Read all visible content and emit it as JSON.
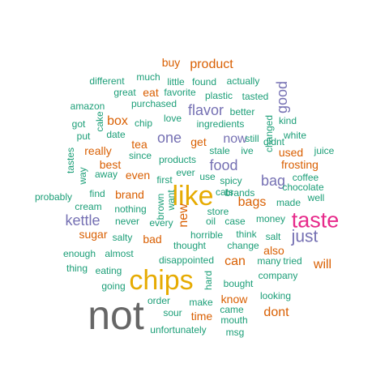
{
  "palette": {
    "teal": "#1b9e77",
    "orange": "#d95f02",
    "purple": "#7570b3",
    "pink": "#e7298a",
    "olive": "#66a61e",
    "gold": "#e6ab02",
    "brown": "#a6761d",
    "gray": "#666666"
  },
  "words": [
    {
      "text": "not",
      "color": "gray",
      "weight": 10,
      "vertical": false
    },
    {
      "text": "chips",
      "color": "gold",
      "weight": 8,
      "vertical": false
    },
    {
      "text": "like",
      "color": "gold",
      "weight": 8,
      "vertical": false
    },
    {
      "text": "taste",
      "color": "pink",
      "weight": 7,
      "vertical": false
    },
    {
      "text": "just",
      "color": "purple",
      "weight": 6,
      "vertical": false
    },
    {
      "text": "kettle",
      "color": "purple",
      "weight": 5,
      "vertical": false
    },
    {
      "text": "food",
      "color": "purple",
      "weight": 5,
      "vertical": false
    },
    {
      "text": "bag",
      "color": "purple",
      "weight": 5,
      "vertical": false
    },
    {
      "text": "one",
      "color": "purple",
      "weight": 5,
      "vertical": false
    },
    {
      "text": "flavor",
      "color": "purple",
      "weight": 5,
      "vertical": false
    },
    {
      "text": "good",
      "color": "purple",
      "weight": 5,
      "vertical": true
    },
    {
      "text": "product",
      "color": "orange",
      "weight": 4,
      "vertical": false
    },
    {
      "text": "box",
      "color": "orange",
      "weight": 4,
      "vertical": false
    },
    {
      "text": "now",
      "color": "purple",
      "weight": 4,
      "vertical": false
    },
    {
      "text": "new",
      "color": "orange",
      "weight": 4,
      "vertical": true
    },
    {
      "text": "will",
      "color": "orange",
      "weight": 4,
      "vertical": false
    },
    {
      "text": "dont",
      "color": "orange",
      "weight": 4,
      "vertical": false
    },
    {
      "text": "can",
      "color": "orange",
      "weight": 4,
      "vertical": false
    },
    {
      "text": "bags",
      "color": "orange",
      "weight": 4,
      "vertical": false
    },
    {
      "text": "buy",
      "color": "orange",
      "weight": 3,
      "vertical": false
    },
    {
      "text": "best",
      "color": "orange",
      "weight": 3,
      "vertical": false
    },
    {
      "text": "brand",
      "color": "orange",
      "weight": 3,
      "vertical": false
    },
    {
      "text": "bad",
      "color": "orange",
      "weight": 3,
      "vertical": false
    },
    {
      "text": "even",
      "color": "orange",
      "weight": 3,
      "vertical": false
    },
    {
      "text": "used",
      "color": "orange",
      "weight": 3,
      "vertical": false
    },
    {
      "text": "frosting",
      "color": "orange",
      "weight": 3,
      "vertical": false
    },
    {
      "text": "know",
      "color": "orange",
      "weight": 3,
      "vertical": false
    },
    {
      "text": "time",
      "color": "orange",
      "weight": 3,
      "vertical": false
    },
    {
      "text": "eat",
      "color": "orange",
      "weight": 3,
      "vertical": false
    },
    {
      "text": "tea",
      "color": "orange",
      "weight": 3,
      "vertical": false
    },
    {
      "text": "sugar",
      "color": "orange",
      "weight": 3,
      "vertical": false
    },
    {
      "text": "get",
      "color": "orange",
      "weight": 3,
      "vertical": false
    },
    {
      "text": "really",
      "color": "orange",
      "weight": 3,
      "vertical": false
    },
    {
      "text": "also",
      "color": "orange",
      "weight": 3,
      "vertical": false
    },
    {
      "text": "much",
      "color": "teal",
      "weight": 2,
      "vertical": false
    },
    {
      "text": "little",
      "color": "teal",
      "weight": 2,
      "vertical": false
    },
    {
      "text": "found",
      "color": "teal",
      "weight": 2,
      "vertical": false
    },
    {
      "text": "actually",
      "color": "teal",
      "weight": 2,
      "vertical": false
    },
    {
      "text": "different",
      "color": "teal",
      "weight": 2,
      "vertical": false
    },
    {
      "text": "great",
      "color": "teal",
      "weight": 2,
      "vertical": false
    },
    {
      "text": "favorite",
      "color": "teal",
      "weight": 2,
      "vertical": false
    },
    {
      "text": "plastic",
      "color": "teal",
      "weight": 2,
      "vertical": false
    },
    {
      "text": "tasted",
      "color": "teal",
      "weight": 2,
      "vertical": false
    },
    {
      "text": "amazon",
      "color": "teal",
      "weight": 2,
      "vertical": false
    },
    {
      "text": "purchased",
      "color": "teal",
      "weight": 2,
      "vertical": false
    },
    {
      "text": "better",
      "color": "teal",
      "weight": 2,
      "vertical": false
    },
    {
      "text": "kind",
      "color": "teal",
      "weight": 2,
      "vertical": false
    },
    {
      "text": "cake",
      "color": "teal",
      "weight": 2,
      "vertical": true
    },
    {
      "text": "got",
      "color": "teal",
      "weight": 2,
      "vertical": false
    },
    {
      "text": "chip",
      "color": "teal",
      "weight": 2,
      "vertical": false
    },
    {
      "text": "love",
      "color": "teal",
      "weight": 2,
      "vertical": false
    },
    {
      "text": "ingredients",
      "color": "teal",
      "weight": 2,
      "vertical": false
    },
    {
      "text": "changed",
      "color": "teal",
      "weight": 2,
      "vertical": true
    },
    {
      "text": "white",
      "color": "teal",
      "weight": 2,
      "vertical": false
    },
    {
      "text": "put",
      "color": "teal",
      "weight": 2,
      "vertical": false
    },
    {
      "text": "date",
      "color": "teal",
      "weight": 2,
      "vertical": false
    },
    {
      "text": "still",
      "color": "teal",
      "weight": 2,
      "vertical": false
    },
    {
      "text": "didnt",
      "color": "teal",
      "weight": 2,
      "vertical": false
    },
    {
      "text": "tastes",
      "color": "teal",
      "weight": 2,
      "vertical": true
    },
    {
      "text": "way",
      "color": "teal",
      "weight": 2,
      "vertical": true
    },
    {
      "text": "since",
      "color": "teal",
      "weight": 2,
      "vertical": false
    },
    {
      "text": "products",
      "color": "teal",
      "weight": 2,
      "vertical": false
    },
    {
      "text": "stale",
      "color": "teal",
      "weight": 2,
      "vertical": false
    },
    {
      "text": "ive",
      "color": "teal",
      "weight": 2,
      "vertical": false
    },
    {
      "text": "juice",
      "color": "teal",
      "weight": 2,
      "vertical": false
    },
    {
      "text": "away",
      "color": "teal",
      "weight": 2,
      "vertical": false
    },
    {
      "text": "ever",
      "color": "teal",
      "weight": 2,
      "vertical": false
    },
    {
      "text": "use",
      "color": "teal",
      "weight": 2,
      "vertical": false
    },
    {
      "text": "coffee",
      "color": "teal",
      "weight": 2,
      "vertical": false
    },
    {
      "text": "first",
      "color": "teal",
      "weight": 2,
      "vertical": false
    },
    {
      "text": "spicy",
      "color": "teal",
      "weight": 2,
      "vertical": false
    },
    {
      "text": "chocolate",
      "color": "teal",
      "weight": 2,
      "vertical": false
    },
    {
      "text": "find",
      "color": "teal",
      "weight": 2,
      "vertical": false
    },
    {
      "text": "want",
      "color": "teal",
      "weight": 2,
      "vertical": true
    },
    {
      "text": "cats",
      "color": "teal",
      "weight": 2,
      "vertical": false
    },
    {
      "text": "brands",
      "color": "teal",
      "weight": 2,
      "vertical": false
    },
    {
      "text": "well",
      "color": "teal",
      "weight": 2,
      "vertical": false
    },
    {
      "text": "probably",
      "color": "teal",
      "weight": 2,
      "vertical": false
    },
    {
      "text": "cream",
      "color": "teal",
      "weight": 2,
      "vertical": false
    },
    {
      "text": "brown",
      "color": "teal",
      "weight": 2,
      "vertical": true
    },
    {
      "text": "made",
      "color": "teal",
      "weight": 2,
      "vertical": false
    },
    {
      "text": "nothing",
      "color": "teal",
      "weight": 2,
      "vertical": false
    },
    {
      "text": "store",
      "color": "teal",
      "weight": 2,
      "vertical": false
    },
    {
      "text": "never",
      "color": "teal",
      "weight": 2,
      "vertical": false
    },
    {
      "text": "oil",
      "color": "teal",
      "weight": 2,
      "vertical": false
    },
    {
      "text": "case",
      "color": "teal",
      "weight": 2,
      "vertical": false
    },
    {
      "text": "money",
      "color": "teal",
      "weight": 2,
      "vertical": false
    },
    {
      "text": "every",
      "color": "teal",
      "weight": 2,
      "vertical": false
    },
    {
      "text": "think",
      "color": "teal",
      "weight": 2,
      "vertical": false
    },
    {
      "text": "salty",
      "color": "teal",
      "weight": 2,
      "vertical": false
    },
    {
      "text": "salt",
      "color": "teal",
      "weight": 2,
      "vertical": false
    },
    {
      "text": "horrible",
      "color": "teal",
      "weight": 2,
      "vertical": false
    },
    {
      "text": "thought",
      "color": "teal",
      "weight": 2,
      "vertical": false
    },
    {
      "text": "change",
      "color": "teal",
      "weight": 2,
      "vertical": false
    },
    {
      "text": "enough",
      "color": "teal",
      "weight": 2,
      "vertical": false
    },
    {
      "text": "almost",
      "color": "teal",
      "weight": 2,
      "vertical": false
    },
    {
      "text": "disappointed",
      "color": "teal",
      "weight": 2,
      "vertical": false
    },
    {
      "text": "many",
      "color": "teal",
      "weight": 2,
      "vertical": false
    },
    {
      "text": "tried",
      "color": "teal",
      "weight": 2,
      "vertical": false
    },
    {
      "text": "thing",
      "color": "teal",
      "weight": 2,
      "vertical": false
    },
    {
      "text": "eating",
      "color": "teal",
      "weight": 2,
      "vertical": false
    },
    {
      "text": "hard",
      "color": "teal",
      "weight": 2,
      "vertical": true
    },
    {
      "text": "company",
      "color": "teal",
      "weight": 2,
      "vertical": false
    },
    {
      "text": "bought",
      "color": "teal",
      "weight": 2,
      "vertical": false
    },
    {
      "text": "going",
      "color": "teal",
      "weight": 2,
      "vertical": false
    },
    {
      "text": "looking",
      "color": "teal",
      "weight": 2,
      "vertical": false
    },
    {
      "text": "order",
      "color": "teal",
      "weight": 2,
      "vertical": false
    },
    {
      "text": "make",
      "color": "teal",
      "weight": 2,
      "vertical": false
    },
    {
      "text": "sour",
      "color": "teal",
      "weight": 2,
      "vertical": false
    },
    {
      "text": "came",
      "color": "teal",
      "weight": 2,
      "vertical": false
    },
    {
      "text": "mouth",
      "color": "teal",
      "weight": 2,
      "vertical": false
    },
    {
      "text": "unfortunately",
      "color": "teal",
      "weight": 2,
      "vertical": false
    },
    {
      "text": "msg",
      "color": "teal",
      "weight": 2,
      "vertical": false
    }
  ]
}
